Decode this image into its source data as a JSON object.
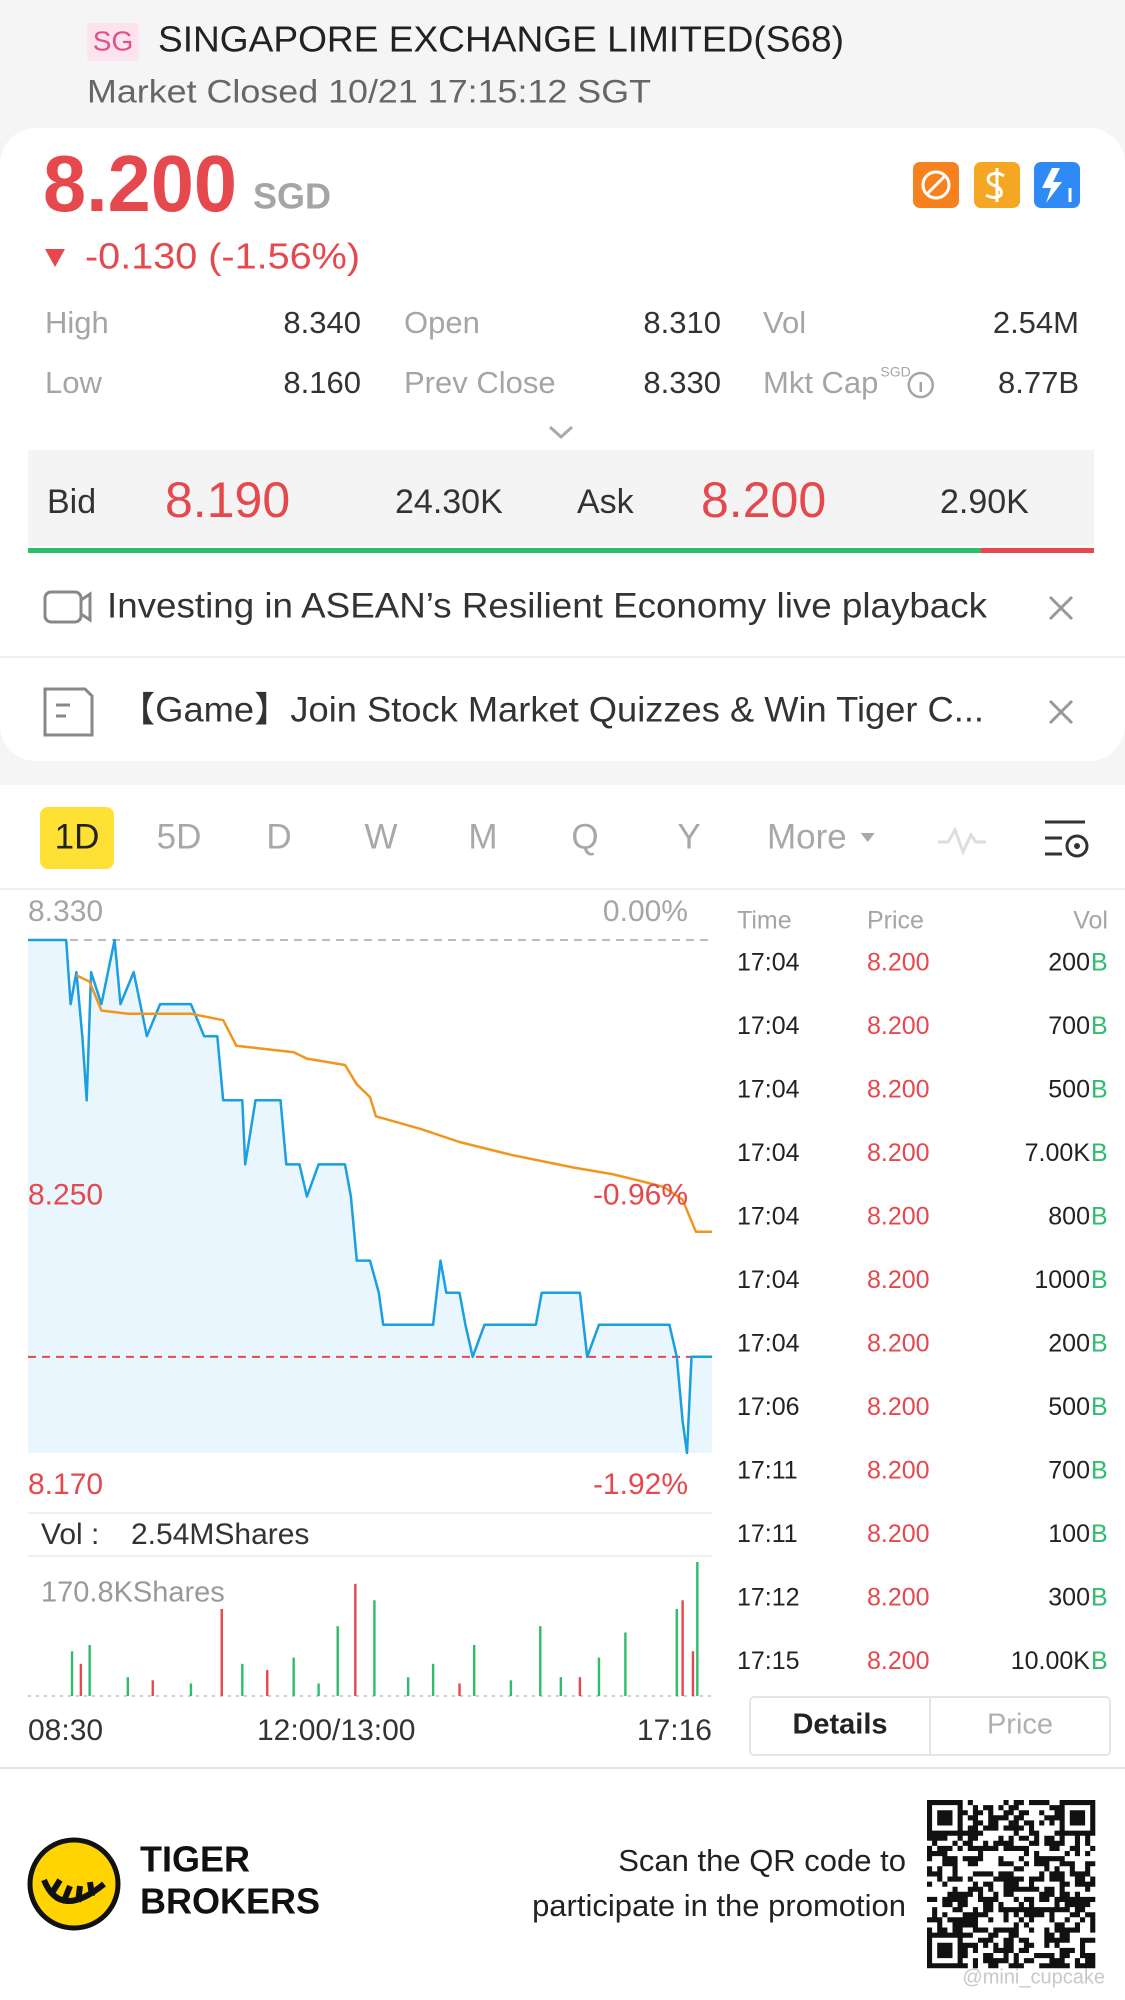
{
  "header": {
    "badge": "SG",
    "title": "SINGAPORE EXCHANGE LIMITED(S68)",
    "status": "Market Closed 10/21 17:15:12 SGT"
  },
  "quote": {
    "price": "8.200",
    "currency": "SGD",
    "change": "-0.130 (-1.56%)"
  },
  "stats": [
    {
      "label": "High",
      "value": "8.340"
    },
    {
      "label": "Open",
      "value": "8.310"
    },
    {
      "label": "Vol",
      "value": "2.54M"
    },
    {
      "label": "Low",
      "value": "8.160"
    },
    {
      "label": "Prev Close",
      "value": "8.330"
    },
    {
      "label": "Mkt Cap",
      "superscript": "SGD",
      "value": "8.77B"
    }
  ],
  "bid_ask": {
    "bid_label": "Bid",
    "bid_price": "8.190",
    "bid_size": "24.30K",
    "ask_label": "Ask",
    "ask_price": "8.200",
    "ask_size": "2.90K"
  },
  "banners": [
    "Investing in ASEAN’s Resilient Economy live playback",
    "【Game】Join Stock Market Quizzes & Win Tiger C..."
  ],
  "period_tabs": {
    "tabs": [
      "1D",
      "5D",
      "D",
      "W",
      "M",
      "Q",
      "Y",
      "More"
    ],
    "active": 0
  },
  "chart_data": [
    {
      "type": "line",
      "xlim": [
        0,
        466
      ],
      "xticks": [
        {
          "value": 0,
          "label": "08:30"
        },
        {
          "value": 210,
          "label": "12:00/13:00"
        },
        {
          "value": 466,
          "label": "17:16"
        }
      ],
      "ylim": [
        8.17,
        8.33
      ],
      "yticks": [
        {
          "value": 8.33,
          "label": "8.330"
        },
        {
          "value": 8.25,
          "label": "8.250"
        },
        {
          "value": 8.17,
          "label": "8.170"
        }
      ],
      "y2lim": [
        -1.92,
        0
      ],
      "y2ticks": [
        {
          "value": 0,
          "label": "0.00%"
        },
        {
          "value": -0.96,
          "label": "-0.96%"
        },
        {
          "value": -1.92,
          "label": "-1.92%"
        }
      ],
      "reference_lines": [
        {
          "value": 8.33,
          "color": "#bbbbbb"
        },
        {
          "value": 8.2,
          "color": "#e5484d"
        }
      ],
      "series": [
        {
          "color": "#1a9fe0",
          "fill": "#e9f6fd",
          "x": [
            0,
            26,
            29,
            33,
            37,
            40,
            43,
            50,
            59,
            63,
            72,
            81,
            90,
            98,
            111,
            120,
            129,
            133,
            146,
            148,
            155,
            163,
            172,
            176,
            185,
            190,
            198,
            207,
            216,
            220,
            224,
            233,
            239,
            242,
            259,
            276,
            281,
            285,
            294,
            298,
            303,
            311,
            329,
            346,
            350,
            363,
            376,
            381,
            389,
            398,
            416,
            437,
            442,
            446,
            449,
            452,
            457,
            466
          ],
          "values": [
            8.33,
            8.33,
            8.31,
            8.32,
            8.3,
            8.28,
            8.32,
            8.31,
            8.33,
            8.31,
            8.32,
            8.3,
            8.31,
            8.31,
            8.31,
            8.3,
            8.3,
            8.28,
            8.28,
            8.26,
            8.28,
            8.28,
            8.28,
            8.26,
            8.26,
            8.25,
            8.26,
            8.26,
            8.26,
            8.25,
            8.23,
            8.23,
            8.22,
            8.21,
            8.21,
            8.21,
            8.23,
            8.22,
            8.22,
            8.21,
            8.2,
            8.21,
            8.21,
            8.21,
            8.22,
            8.22,
            8.22,
            8.2,
            8.21,
            8.21,
            8.21,
            8.21,
            8.2,
            8.18,
            8.17,
            8.2,
            8.2,
            8.2
          ]
        },
        {
          "color": "#f0961e",
          "x": [
            33,
            42,
            50,
            68,
            111,
            133,
            142,
            181,
            190,
            216,
            224,
            233,
            237,
            268,
            294,
            329,
            372,
            398,
            416,
            433,
            446,
            455,
            466
          ],
          "values": [
            8.319,
            8.317,
            8.308,
            8.307,
            8.307,
            8.305,
            8.297,
            8.295,
            8.293,
            8.291,
            8.285,
            8.281,
            8.275,
            8.271,
            8.267,
            8.263,
            8.259,
            8.257,
            8.255,
            8.253,
            8.249,
            8.239,
            8.239
          ]
        }
      ]
    },
    {
      "type": "bar",
      "title": "Vol :",
      "subtitle": "2.54MShares",
      "xlim": [
        0,
        466
      ],
      "ylim": [
        0,
        170.8
      ],
      "yticks": [
        {
          "value": 170.8,
          "label": "170.8KShares"
        }
      ],
      "series": [
        {
          "color": "#2ebd6b",
          "x": [
            30,
            42,
            68,
            111,
            146,
            181,
            198,
            211,
            236,
            259,
            276,
            304,
            329,
            349,
            363,
            389,
            407,
            442,
            456
          ],
          "values": [
            57,
            65,
            24,
            16,
            41,
            49,
            16,
            89,
            122,
            24,
            41,
            65,
            20,
            89,
            24,
            49,
            81,
            111,
            170.8
          ]
        },
        {
          "color": "#e5484d",
          "x": [
            36,
            85,
            132,
            163,
            223,
            294,
            376,
            446,
            453
          ],
          "values": [
            41,
            20,
            111,
            33,
            143,
            16,
            24,
            122,
            57
          ]
        }
      ]
    }
  ],
  "trades": {
    "columns": [
      "Time",
      "Price",
      "Vol"
    ],
    "rows": [
      [
        "17:04",
        "8.200",
        "200",
        "B"
      ],
      [
        "17:04",
        "8.200",
        "700",
        "B"
      ],
      [
        "17:04",
        "8.200",
        "500",
        "B"
      ],
      [
        "17:04",
        "8.200",
        "7.00K",
        "B"
      ],
      [
        "17:04",
        "8.200",
        "800",
        "B"
      ],
      [
        "17:04",
        "8.200",
        "1000",
        "B"
      ],
      [
        "17:04",
        "8.200",
        "200",
        "B"
      ],
      [
        "17:06",
        "8.200",
        "500",
        "B"
      ],
      [
        "17:11",
        "8.200",
        "700",
        "B"
      ],
      [
        "17:11",
        "8.200",
        "100",
        "B"
      ],
      [
        "17:12",
        "8.200",
        "300",
        "B"
      ],
      [
        "17:15",
        "8.200",
        "10.00K",
        "B"
      ]
    ],
    "tabs": [
      "Details",
      "Price"
    ],
    "active_tab": 0
  },
  "footer": {
    "brand": [
      "TIGER",
      "BROKERS"
    ],
    "cta": [
      "Scan the QR code to",
      "participate in the promotion"
    ],
    "watermark": "@mini_cupcake"
  }
}
